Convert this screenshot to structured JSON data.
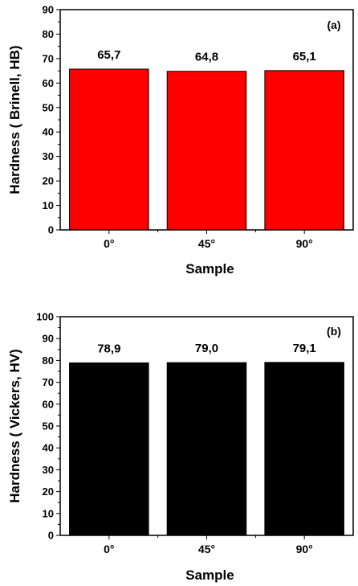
{
  "chart_data": [
    {
      "type": "bar",
      "panel_label": "(a)",
      "categories": [
        "0°",
        "45°",
        "90°"
      ],
      "values": [
        65.7,
        64.8,
        65.1
      ],
      "data_labels": [
        "65,7",
        "64,8",
        "65,1"
      ],
      "xlabel": "Sample",
      "ylabel": "Hardness ( Brinell, HB)",
      "ylim": [
        0,
        90
      ],
      "yticks": [
        0,
        10,
        20,
        30,
        40,
        50,
        60,
        70,
        80,
        90
      ],
      "bar_color": "#ff0000",
      "grid": false
    },
    {
      "type": "bar",
      "panel_label": "(b)",
      "categories": [
        "0°",
        "45°",
        "90°"
      ],
      "values": [
        78.9,
        79.0,
        79.1
      ],
      "data_labels": [
        "78,9",
        "79,0",
        "79,1"
      ],
      "xlabel": "Sample",
      "ylabel": "Hardness ( Vickers, HV)",
      "ylim": [
        0,
        100
      ],
      "yticks": [
        0,
        10,
        20,
        30,
        40,
        50,
        60,
        70,
        80,
        90,
        100
      ],
      "bar_color": "#000000",
      "grid": false
    }
  ]
}
